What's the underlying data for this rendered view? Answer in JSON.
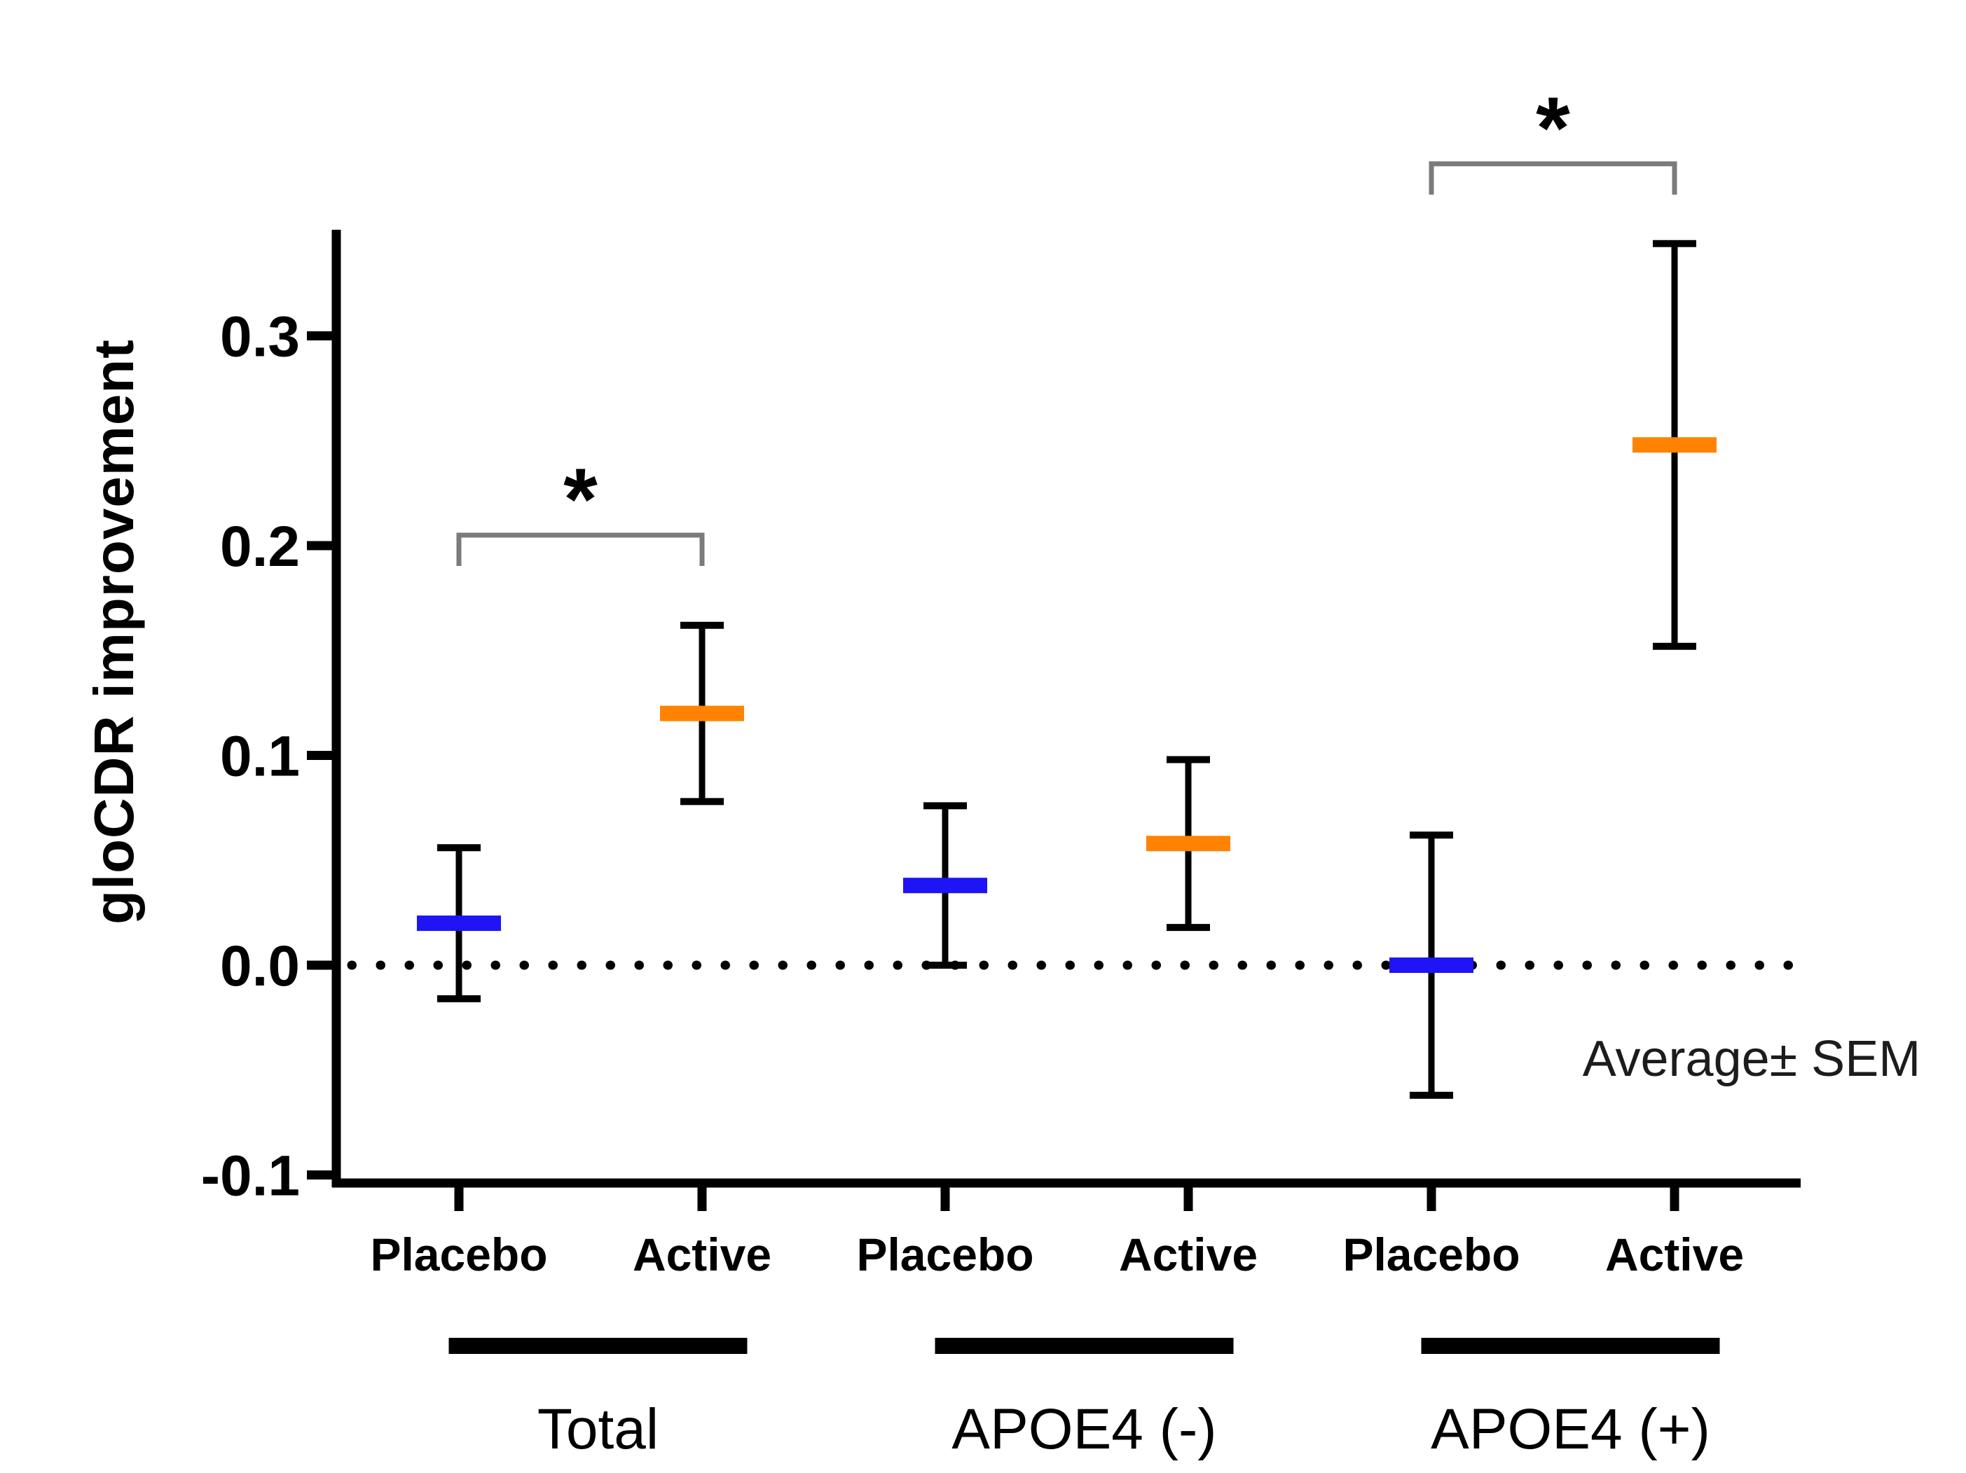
{
  "page": {
    "background": "#ffffff"
  },
  "chart_data": {
    "type": "errorbar",
    "title": "",
    "ylabel": "gloCDR improvement",
    "annotation": "Average± SEM",
    "ylim": [
      -0.1,
      0.355
    ],
    "ytick_values": [
      0.3,
      0.2,
      0.1,
      0.0,
      -0.1
    ],
    "ytick_labels": [
      "0.3",
      "0.2",
      "0.1",
      "0.0",
      "-0.1"
    ],
    "zero_reference_line": "dotted",
    "grid": false,
    "legend_position": "none",
    "condition_colors": {
      "Placebo": "#1e14f5",
      "Active": "#ff8300"
    },
    "axis_color": "#000000",
    "bracket_color": "#7b7b7b",
    "groups": [
      {
        "label": "Total",
        "points": [
          {
            "condition": "Placebo",
            "mean": 0.02,
            "sem": 0.036
          },
          {
            "condition": "Active",
            "mean": 0.12,
            "sem": 0.042
          }
        ],
        "significance": {
          "label": "*",
          "bracket_y": 0.205
        }
      },
      {
        "label": "APOE4 (-)",
        "points": [
          {
            "condition": "Placebo",
            "mean": 0.038,
            "sem": 0.038
          },
          {
            "condition": "Active",
            "mean": 0.058,
            "sem": 0.04
          }
        ],
        "significance": null
      },
      {
        "label": "APOE4 (+)",
        "points": [
          {
            "condition": "Placebo",
            "mean": 0.0,
            "sem": 0.062
          },
          {
            "condition": "Active",
            "mean": 0.248,
            "sem": 0.096
          }
        ],
        "significance": {
          "label": "*",
          "bracket_y": 0.382
        }
      }
    ]
  }
}
